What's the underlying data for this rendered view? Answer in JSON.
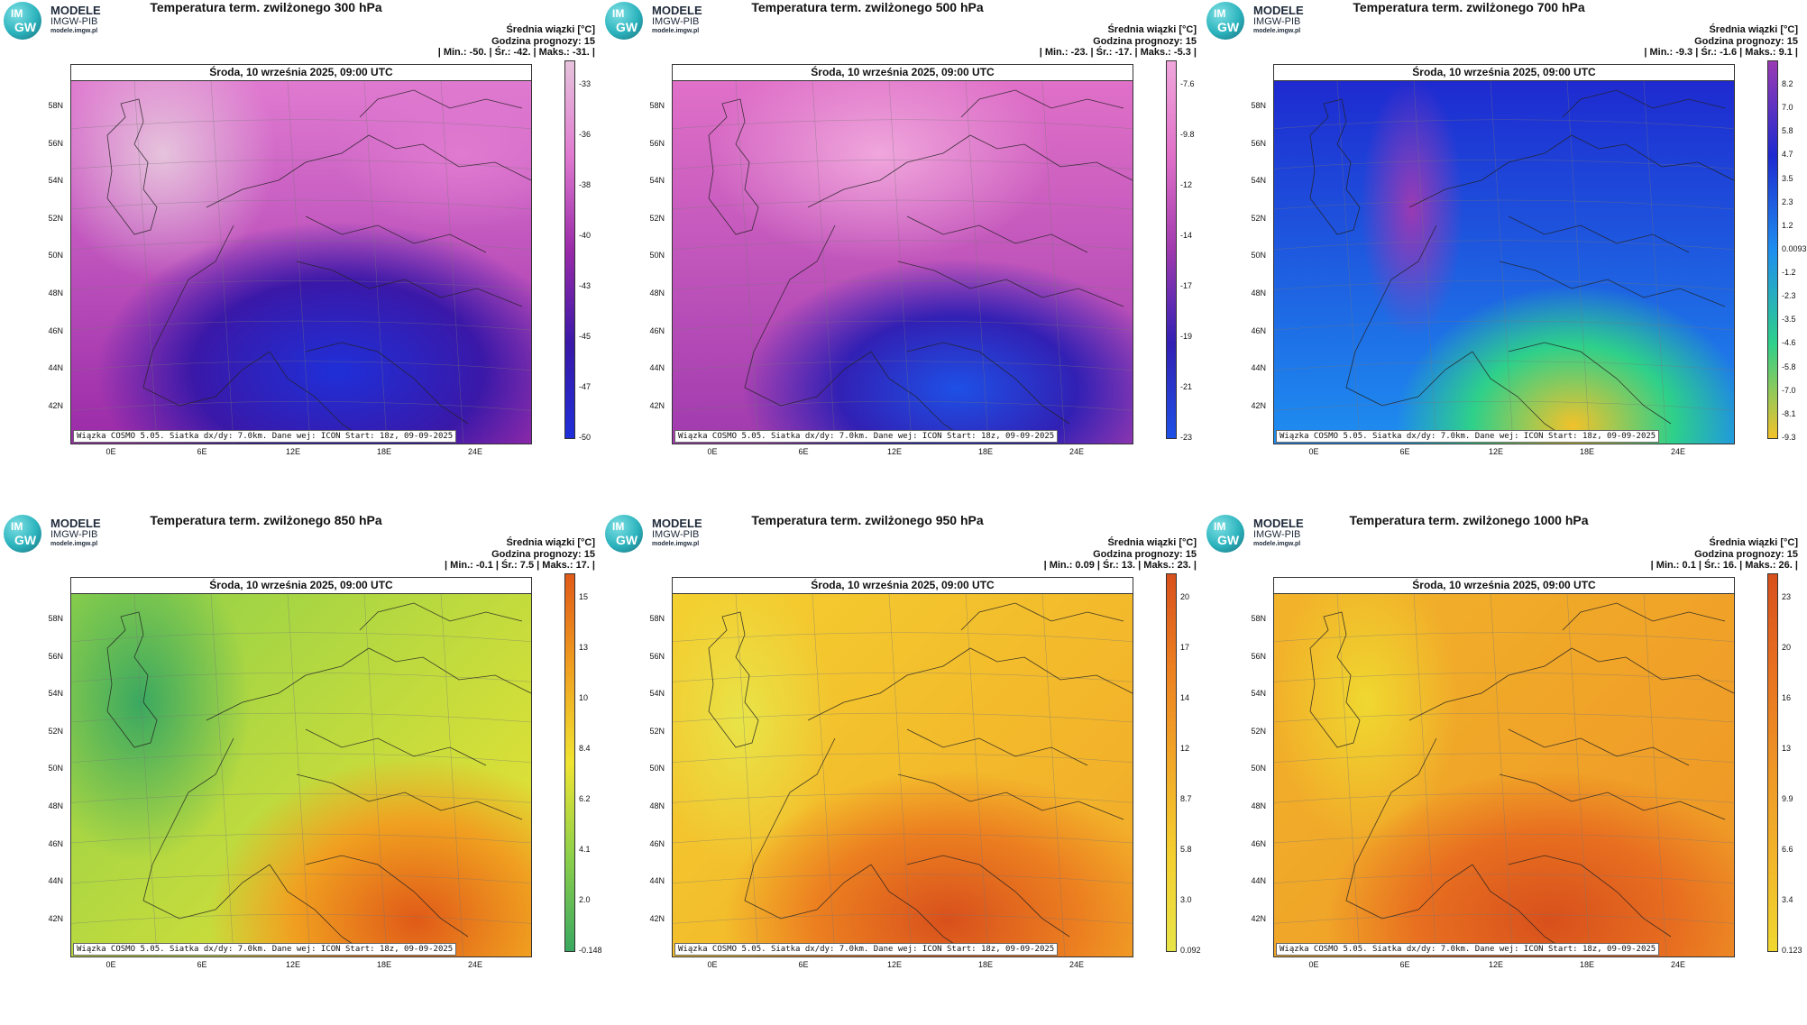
{
  "common": {
    "logo_im": "IM",
    "logo_gw": "GW",
    "logo_line1": "MODELE",
    "logo_line2": "IMGW-PIB",
    "logo_line3": "modele.imgw.pl",
    "subtitle": "Średnia wiązki [°C]",
    "forecast_hour": "Godzina prognozy: 15",
    "date_header": "Środa, 10 września 2025, 09:00 UTC",
    "footer": "Wiązka COSMO 5.05. Siatka dx/dy: 7.0km. Dane wej: ICON Start: 18z, 09-09-2025",
    "lat_labels": [
      "58N",
      "56N",
      "54N",
      "52N",
      "50N",
      "48N",
      "46N",
      "44N",
      "42N"
    ],
    "lon_labels": [
      "0E",
      "6E",
      "12E",
      "18E",
      "24E"
    ]
  },
  "panels": [
    {
      "title": "Temperatura term. zwilżonego 300 hPa",
      "stats": "| Min.:    -50. | Śr.:    -42. | Maks.:    -31. |",
      "colorbar_labels": [
        "-33",
        "-36",
        "-38",
        "-40",
        "-43",
        "-45",
        "-47",
        "-50"
      ],
      "colors": [
        "#e6c3dc",
        "#e07ad0",
        "#9a2aa8",
        "#3a18a8",
        "#1f2fd8"
      ]
    },
    {
      "title": "Temperatura term. zwilżonego 500 hPa",
      "stats": "| Min.:    -23. | Śr.:    -17. | Maks.:    -5.3 |",
      "colorbar_labels": [
        "-7.6",
        "-9.8",
        "-12",
        "-14",
        "-17",
        "-19",
        "-21",
        "-23"
      ],
      "colors": [
        "#f0a6dc",
        "#e070c8",
        "#a03aae",
        "#3220b4",
        "#1e50e6"
      ]
    },
    {
      "title": "Temperatura term. zwilżonego 700 hPa",
      "stats": "| Min.:    -9.3 | Śr.:    -1.6 | Maks.:    9.1 |",
      "colorbar_labels": [
        "8.2",
        "7.0",
        "5.8",
        "4.7",
        "3.5",
        "2.3",
        "1.2",
        "0.0093",
        "-1.2",
        "-2.3",
        "-3.5",
        "-4.6",
        "-5.8",
        "-7.0",
        "-8.1",
        "-9.3"
      ],
      "colors": [
        "#9a3ab4",
        "#1e2ad0",
        "#1e8ef0",
        "#2ed08a",
        "#f2c22a"
      ]
    },
    {
      "title": "Temperatura term. zwilżonego 850 hPa",
      "stats": "| Min.:    -0.1 | Śr.:    7.5 | Maks.:    17. |",
      "colorbar_labels": [
        "15",
        "13",
        "10",
        "8.4",
        "6.2",
        "4.1",
        "2.0",
        "-0.148"
      ],
      "colors": [
        "#3aa860",
        "#8cd04a",
        "#f0e432",
        "#f0a020",
        "#e05a18"
      ]
    },
    {
      "title": "Temperatura term. zwilżonego 950 hPa",
      "stats": "| Min.:    0.09 | Śr.:    13. | Maks.:    23. |",
      "colorbar_labels": [
        "20",
        "17",
        "14",
        "12",
        "8.7",
        "5.8",
        "3.0",
        "0.092"
      ],
      "colors": [
        "#e8e448",
        "#f4d030",
        "#f2a828",
        "#ec8020",
        "#d8501c"
      ]
    },
    {
      "title": "Temperatura term. zwilżonego 1000 hPa",
      "stats": "| Min.:    0.1 | Śr.:    16. | Maks.:    26. |",
      "colorbar_labels": [
        "23",
        "20",
        "16",
        "13",
        "9.9",
        "6.6",
        "3.4",
        "0.123"
      ],
      "colors": [
        "#f0d830",
        "#f2b42a",
        "#ee9426",
        "#e87020",
        "#d8501c"
      ]
    }
  ]
}
